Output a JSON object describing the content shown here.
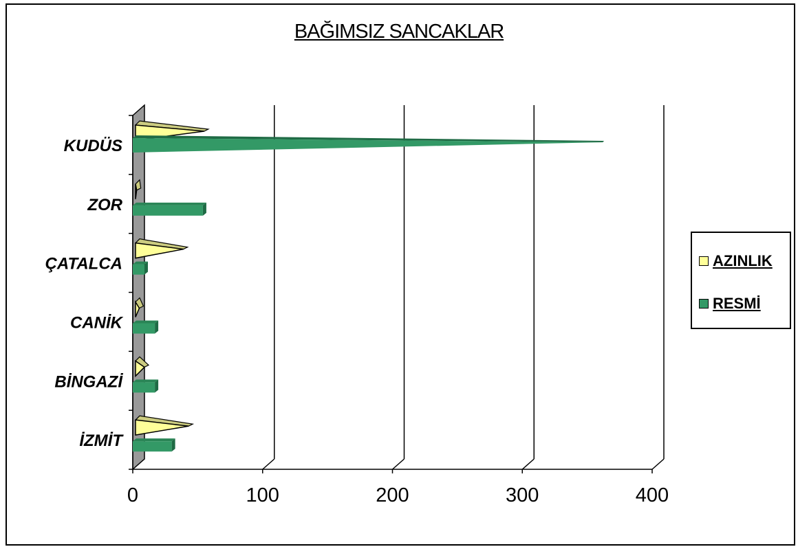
{
  "chart_data": {
    "type": "bar",
    "orientation": "horizontal",
    "title": "BAĞIMSIZ SANCAKLAR",
    "categories": [
      "KUDÜS",
      "ZOR",
      "ÇATALCA",
      "CANİK",
      "BİNGAZİ",
      "İZMİT"
    ],
    "series": [
      {
        "name": "AZINLIK",
        "color": "#ffff99",
        "values": [
          55,
          3,
          39,
          5,
          9,
          43
        ]
      },
      {
        "name": "RESMİ",
        "color": "#339966",
        "values": [
          363,
          54,
          9,
          17,
          17,
          30
        ]
      }
    ],
    "xticks": [
      "0",
      "100",
      "200",
      "300",
      "400"
    ],
    "xlim": [
      0,
      400
    ],
    "grid": true,
    "legend_position": "right"
  }
}
